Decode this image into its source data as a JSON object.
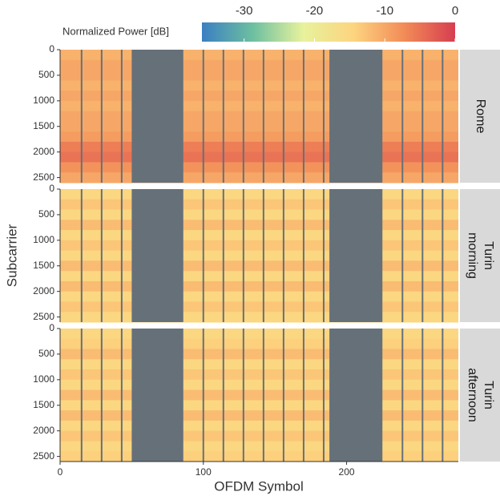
{
  "chart_data": {
    "type": "heatmap",
    "legend_title": "Normalized Power [dB]",
    "clim": [
      -36,
      0
    ],
    "cticks": [
      -30,
      -20,
      -10,
      0
    ],
    "colormap": [
      "#3b7fc2",
      "#6cbfa0",
      "#e8f29c",
      "#fdd47f",
      "#f28b57",
      "#d63e50"
    ],
    "empty_color": "#667079",
    "xlabel": "OFDM Symbol",
    "ylabel": "Subcarrier",
    "xlim": [
      0,
      278
    ],
    "xticks": [
      0,
      100,
      200
    ],
    "ylim": [
      0,
      2600
    ],
    "y_reversed": true,
    "yticks": [
      0,
      500,
      1000,
      1500,
      2000,
      2500
    ],
    "empty_ranges": [
      [
        50,
        86
      ],
      [
        188,
        225
      ]
    ],
    "empty_symbols": [
      15,
      29,
      43,
      100,
      114,
      128,
      142,
      156,
      170,
      184,
      239,
      253,
      267
    ],
    "band_edges": [
      0,
      200,
      400,
      600,
      800,
      1000,
      1200,
      1400,
      1600,
      1800,
      2000,
      2200,
      2400,
      2600
    ],
    "panels": [
      {
        "name": "Rome",
        "values": [
          -11,
          -10,
          -10,
          -11,
          -10,
          -11,
          -10,
          -10,
          -9,
          -6,
          -5,
          -8,
          -10
        ]
      },
      {
        "name": "Turin morning",
        "values": [
          -15,
          -13,
          -15,
          -12,
          -15,
          -13,
          -15,
          -12,
          -15,
          -12,
          -15,
          -13,
          -15
        ]
      },
      {
        "name": "Turin afternoon",
        "values": [
          -15,
          -14,
          -12,
          -15,
          -13,
          -15,
          -12,
          -15,
          -12,
          -15,
          -13,
          -15,
          -14
        ]
      }
    ]
  }
}
